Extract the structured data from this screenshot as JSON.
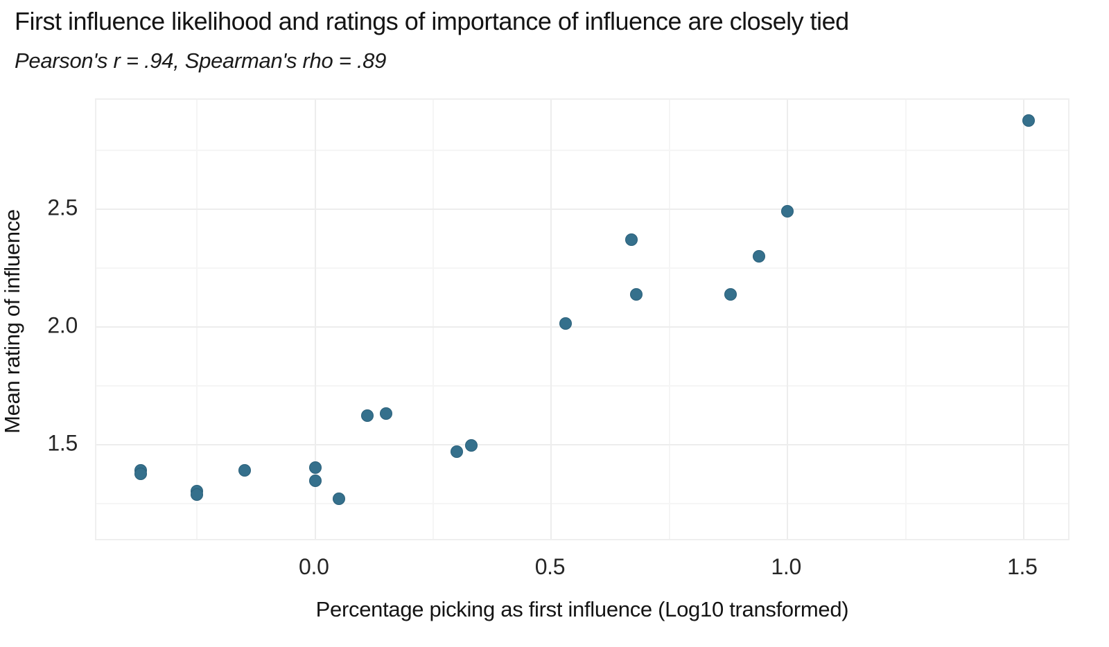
{
  "chart_data": {
    "type": "scatter",
    "title": "First influence likelihood and ratings of importance of influence are closely tied",
    "subtitle": "Pearson's r = .94, Spearman's rho = .89",
    "xlabel": "Percentage picking as first influence (Log10 transformed)",
    "ylabel": "Mean rating of influence",
    "xlim": [
      -0.4635,
      1.6
    ],
    "ylim": [
      1.088,
      2.965
    ],
    "x_ticks": {
      "values": [
        0.0,
        0.5,
        1.0,
        1.5
      ],
      "labels": [
        "0.0",
        "0.5",
        "1.0",
        "1.5"
      ]
    },
    "y_ticks": {
      "values": [
        1.5,
        2.0,
        2.5
      ],
      "labels": [
        "1.5",
        "2.0",
        "2.5"
      ]
    },
    "x_minor_gridlines": [
      -0.25,
      0.25,
      0.75,
      1.25
    ],
    "y_minor_gridlines": [
      1.25,
      1.75,
      2.25,
      2.75
    ],
    "grid": "on",
    "legend": "none",
    "colors": {
      "point": "#35708c",
      "grid_major": "#ededed",
      "grid_minor": "#f5f5f5",
      "panel_border": "#efefef",
      "text": "#141414",
      "tick_text": "#262626",
      "background": "#ffffff"
    },
    "stats_annotation": {
      "pearson_r": ".94",
      "spearman_rho": ".89"
    },
    "points": [
      {
        "x": -0.37,
        "y": 1.39
      },
      {
        "x": -0.37,
        "y": 1.377
      },
      {
        "x": -0.25,
        "y": 1.302
      },
      {
        "x": -0.25,
        "y": 1.288
      },
      {
        "x": -0.15,
        "y": 1.392
      },
      {
        "x": 0.0,
        "y": 1.402
      },
      {
        "x": 0.0,
        "y": 1.347
      },
      {
        "x": 0.05,
        "y": 1.271
      },
      {
        "x": 0.11,
        "y": 1.623
      },
      {
        "x": 0.15,
        "y": 1.632
      },
      {
        "x": 0.3,
        "y": 1.47
      },
      {
        "x": 0.33,
        "y": 1.497
      },
      {
        "x": 0.53,
        "y": 2.015
      },
      {
        "x": 0.67,
        "y": 2.372
      },
      {
        "x": 0.68,
        "y": 2.138
      },
      {
        "x": 0.88,
        "y": 2.137
      },
      {
        "x": 0.94,
        "y": 2.299
      },
      {
        "x": 1.0,
        "y": 2.492
      },
      {
        "x": 1.51,
        "y": 2.877
      }
    ]
  }
}
